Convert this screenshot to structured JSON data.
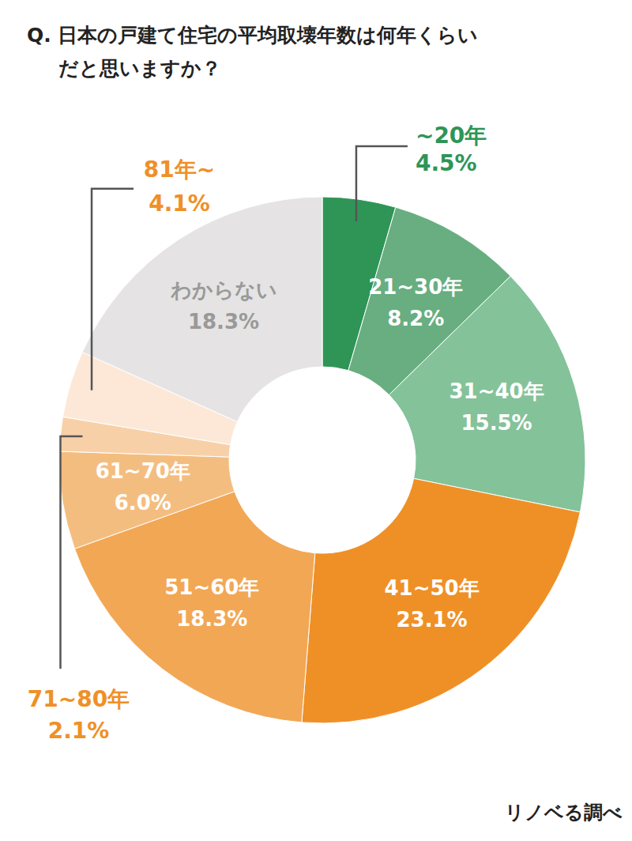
{
  "chart_data": {
    "type": "pie",
    "title": "Q. 日本の戸建て住宅の平均取壊年数は何年くらい\nだと思いますか？",
    "categories": [
      "~20年",
      "21~30年",
      "31~40年",
      "41~50年",
      "51~60年",
      "61~70年",
      "71~80年",
      "81年~",
      "わからない"
    ],
    "values": [
      4.5,
      8.2,
      15.5,
      23.1,
      18.3,
      6.0,
      2.1,
      4.1,
      18.3
    ],
    "value_labels": [
      "4.5%",
      "8.2%",
      "15.5%",
      "23.1%",
      "18.3%",
      "6.0%",
      "2.1%",
      "4.1%",
      "18.3%"
    ],
    "colors": [
      "#2e9557",
      "#68ae80",
      "#84c29a",
      "#ef9027",
      "#f2a755",
      "#f4bd80",
      "#f8d0a8",
      "#fde8d7",
      "#e5e3e3"
    ],
    "data_labels": true,
    "source": "リノベる調べ"
  }
}
